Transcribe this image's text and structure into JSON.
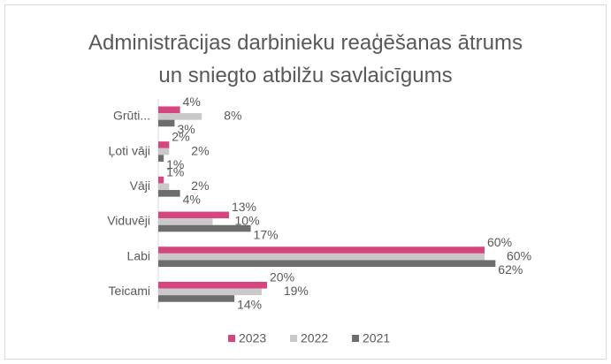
{
  "chart_data": {
    "type": "hbar",
    "title": "Administrācijas darbinieku reaģēšanas ātrums un sniegto atbilžu savlaicīgums",
    "categories": [
      "Grūti...",
      "Ļoti vāji",
      "Vāji",
      "Viduvēji",
      "Labi",
      "Teicami"
    ],
    "series": [
      {
        "name": "2023",
        "color": "#d5457f",
        "values": [
          4,
          2,
          1,
          13,
          60,
          20
        ],
        "value_labels": [
          "4%",
          "2%",
          "1%",
          "13%",
          "60%",
          "20%"
        ]
      },
      {
        "name": "2022",
        "color": "#c9c9c9",
        "values": [
          8,
          2,
          2,
          10,
          60,
          19
        ],
        "value_labels": [
          "8%",
          "2%",
          "2%",
          "10%",
          "60%",
          "19%"
        ]
      },
      {
        "name": "2021",
        "color": "#6d6d6d",
        "values": [
          3,
          1,
          4,
          17,
          62,
          14
        ],
        "value_labels": [
          "3%",
          "1%",
          "4%",
          "17%",
          "62%",
          "14%"
        ]
      }
    ],
    "legend": "bottom"
  }
}
